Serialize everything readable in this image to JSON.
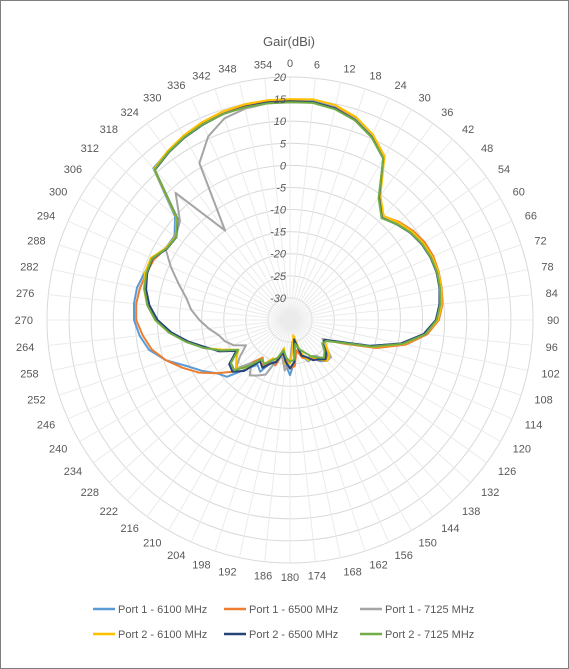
{
  "chart_data": {
    "type": "radar",
    "title": "Gair(dBi)",
    "angle_labels": [
      "0",
      "6",
      "12",
      "18",
      "24",
      "30",
      "36",
      "42",
      "48",
      "54",
      "60",
      "66",
      "72",
      "78",
      "84",
      "90",
      "96",
      "102",
      "108",
      "114",
      "120",
      "126",
      "132",
      "138",
      "144",
      "150",
      "156",
      "162",
      "168",
      "174",
      "180",
      "186",
      "192",
      "198",
      "204",
      "210",
      "216",
      "222",
      "228",
      "234",
      "240",
      "246",
      "252",
      "258",
      "264",
      "270",
      "276",
      "282",
      "288",
      "294",
      "300",
      "306",
      "312",
      "318",
      "324",
      "330",
      "336",
      "342",
      "348",
      "354"
    ],
    "radial_ticks": [
      20,
      15,
      10,
      5,
      0,
      -5,
      -10,
      -15,
      -20,
      -25,
      -30
    ],
    "rlim": [
      -35,
      20
    ],
    "grid": true,
    "legend_position": "bottom",
    "series": [
      {
        "name": "Port 1 - 6100 MHz",
        "color": "#5b9bd5",
        "values": [
          14.6,
          14.8,
          14.2,
          12.8,
          10.5,
          7.6,
          -0.5,
          -3.8,
          -2.5,
          -1.2,
          -0.4,
          0.0,
          0.1,
          -0.2,
          -0.6,
          -1.8,
          -4.5,
          -9.2,
          -16.0,
          -23.0,
          -26.0,
          -25.5,
          -23.5,
          -22.5,
          -23.5,
          -25.0,
          -24.8,
          -26.5,
          -30.0,
          -25.5,
          -22.5,
          -25.0,
          -28.5,
          -25.0,
          -24.5,
          -21.5,
          -22.5,
          -20.0,
          -15.8,
          -14.5,
          -12.0,
          -9.4,
          -5.5,
          -2.4,
          -0.8,
          0.3,
          0.5,
          0.4,
          -0.4,
          -1.0,
          -2.5,
          -2.7,
          0.0,
          11.2,
          12.1,
          12.9,
          13.6,
          14.1,
          14.4,
          14.5
        ]
      },
      {
        "name": "Port 1 - 6500 MHz",
        "color": "#ed7d31",
        "values": [
          14.7,
          14.6,
          14.1,
          13.0,
          11.0,
          7.8,
          -0.6,
          -3.4,
          -1.8,
          -0.6,
          0.2,
          0.5,
          0.4,
          0.1,
          -0.3,
          -1.3,
          -3.8,
          -8.2,
          -14.5,
          -22.0,
          -26.0,
          -25.0,
          -24.0,
          -22.8,
          -23.8,
          -24.8,
          -25.5,
          -26.0,
          -28.0,
          -24.5,
          -24.0,
          -26.2,
          -27.2,
          -24.2,
          -24.5,
          -23.0,
          -24.5,
          -22.0,
          -17.5,
          -14.5,
          -11.2,
          -8.4,
          -5.5,
          -3.0,
          -1.5,
          -0.2,
          0.0,
          -0.3,
          -0.8,
          -1.3,
          -2.6,
          -3.0,
          -0.6,
          11.0,
          12.1,
          12.9,
          13.6,
          14.1,
          14.5,
          14.7
        ]
      },
      {
        "name": "Port 1 - 7125 MHz",
        "color": "#a5a5a5",
        "values": [
          14.3,
          14.5,
          14.0,
          12.8,
          10.8,
          7.5,
          -0.8,
          -3.5,
          -2.2,
          -1.0,
          -0.3,
          0.1,
          0.2,
          -0.3,
          -0.8,
          -1.8,
          -4.5,
          -9.0,
          -15.8,
          -22.5,
          -26.5,
          -25.0,
          -22.5,
          -22.5,
          -25.0,
          -25.5,
          -25.5,
          -27.0,
          -30.5,
          -30.0,
          -25.5,
          -23.5,
          -26.5,
          -25.5,
          -21.5,
          -20.5,
          -19.5,
          -22.0,
          -18.5,
          -21.0,
          -23.5,
          -21.0,
          -19.5,
          -18.5,
          -16.5,
          -14.5,
          -12.5,
          -11.0,
          -8.5,
          -5.5,
          -2.4,
          -3.0,
          -1.5,
          3.7,
          -10.0,
          6.0,
          10.5,
          13.0,
          13.9,
          14.3
        ]
      },
      {
        "name": "Port 2 - 6100 MHz",
        "color": "#ffc000",
        "values": [
          15.0,
          15.2,
          14.7,
          13.3,
          11.0,
          7.8,
          -0.2,
          -3.3,
          -2.0,
          -0.9,
          -0.2,
          0.2,
          0.3,
          0.0,
          -0.5,
          -1.5,
          -4.2,
          -8.8,
          -15.2,
          -22.5,
          -26.0,
          -24.8,
          -23.0,
          -22.5,
          -24.0,
          -25.5,
          -25.0,
          -27.5,
          -31.5,
          -28.5,
          -25.2,
          -25.0,
          -28.5,
          -25.2,
          -25.5,
          -23.5,
          -24.0,
          -20.5,
          -18.5,
          -20.0,
          -21.5,
          -18.5,
          -14.5,
          -11.5,
          -7.5,
          -4.5,
          -2.5,
          -1.2,
          -0.5,
          -0.5,
          -2.5,
          -3.0,
          -0.5,
          11.0,
          12.2,
          13.2,
          14.0,
          14.6,
          14.9,
          15.0
        ]
      },
      {
        "name": "Port 2 - 6500 MHz",
        "color": "#264478",
        "values": [
          14.5,
          14.6,
          14.0,
          12.6,
          10.4,
          7.2,
          -0.7,
          -3.9,
          -2.6,
          -1.4,
          -0.6,
          -0.2,
          -0.1,
          -0.4,
          -1.0,
          -2.0,
          -4.6,
          -9.4,
          -16.0,
          -23.0,
          -26.0,
          -25.8,
          -24.0,
          -23.0,
          -24.0,
          -24.5,
          -25.8,
          -26.5,
          -30.5,
          -25.5,
          -24.0,
          -25.5,
          -27.5,
          -25.0,
          -24.2,
          -22.5,
          -23.5,
          -19.5,
          -17.5,
          -18.0,
          -21.0,
          -17.5,
          -15.0,
          -11.5,
          -8.0,
          -5.0,
          -3.0,
          -1.7,
          -1.0,
          -0.9,
          -2.8,
          -3.2,
          -0.8,
          10.7,
          11.8,
          12.7,
          13.4,
          14.0,
          14.3,
          14.5
        ]
      },
      {
        "name": "Port 2 - 7125 MHz",
        "color": "#70ad47",
        "values": [
          14.3,
          14.4,
          13.8,
          12.5,
          10.3,
          7.2,
          -0.9,
          -4.0,
          -2.5,
          -1.3,
          -0.5,
          -0.1,
          0.0,
          -0.3,
          -0.8,
          -1.8,
          -4.2,
          -9.0,
          -15.5,
          -22.5,
          -25.5,
          -26.0,
          -24.5,
          -23.5,
          -24.5,
          -25.5,
          -27.0,
          -28.0,
          -29.5,
          -26.0,
          -25.5,
          -26.5,
          -28.0,
          -26.0,
          -25.0,
          -23.5,
          -24.0,
          -21.0,
          -18.0,
          -18.5,
          -21.5,
          -18.0,
          -14.5,
          -11.0,
          -7.5,
          -4.5,
          -2.5,
          -1.3,
          -0.8,
          -0.8,
          -2.7,
          -3.1,
          -0.7,
          10.8,
          11.9,
          12.8,
          13.5,
          14.0,
          14.2,
          14.3
        ]
      }
    ]
  }
}
